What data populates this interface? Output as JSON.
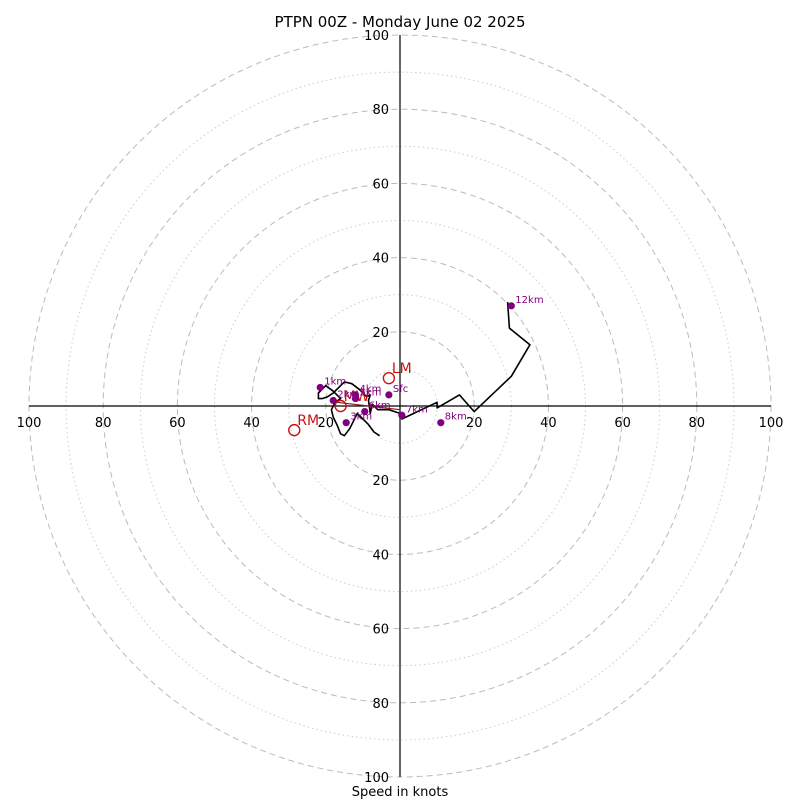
{
  "chart_data": {
    "type": "line",
    "title": "PTPN 00Z - Monday June 02 2025",
    "xlabel": "Speed in knots",
    "ylabel": "",
    "range": 100,
    "major_rings": [
      20,
      40,
      60,
      80,
      100
    ],
    "minor_rings": [
      10,
      30,
      50,
      70,
      90
    ],
    "x_ticks": [
      {
        "value": -100,
        "label": "100"
      },
      {
        "value": -80,
        "label": "80"
      },
      {
        "value": -60,
        "label": "60"
      },
      {
        "value": -40,
        "label": "40"
      },
      {
        "value": -20,
        "label": "20"
      },
      {
        "value": 20,
        "label": "20"
      },
      {
        "value": 40,
        "label": "40"
      },
      {
        "value": 60,
        "label": "60"
      },
      {
        "value": 80,
        "label": "80"
      },
      {
        "value": 100,
        "label": "100"
      }
    ],
    "y_ticks": [
      {
        "value": 100,
        "label": "100"
      },
      {
        "value": 80,
        "label": "80"
      },
      {
        "value": 60,
        "label": "60"
      },
      {
        "value": 40,
        "label": "40"
      },
      {
        "value": 20,
        "label": "20"
      },
      {
        "value": -20,
        "label": "20"
      },
      {
        "value": -40,
        "label": "40"
      },
      {
        "value": -60,
        "label": "60"
      },
      {
        "value": -80,
        "label": "80"
      },
      {
        "value": -100,
        "label": "100"
      }
    ],
    "hodograph": {
      "color": "#000000",
      "u": [
        -5.5,
        -7,
        -8.5,
        -10.5,
        -11.5,
        -12.5,
        -13.5,
        -15,
        -16,
        -17,
        -18,
        -18.5,
        -17.5,
        -16,
        -18,
        -20,
        -22,
        -22,
        -21,
        -19.5,
        -18,
        -16.5,
        -15,
        -13,
        -11,
        -9,
        -8,
        -8.5,
        -8,
        -7.5,
        -6,
        -3,
        0,
        0.5,
        10,
        10,
        16,
        20,
        30,
        35,
        29.5,
        29
      ],
      "v": [
        -8,
        -7,
        -5,
        -3,
        -2,
        -4,
        -6,
        -8,
        -7.5,
        -5,
        -3,
        -1,
        1,
        2,
        4,
        5.5,
        3.5,
        2,
        2,
        2.5,
        3.5,
        5,
        6.5,
        6,
        4.5,
        2.5,
        3,
        1.5,
        -2,
        0.5,
        -1,
        -1,
        -2,
        -3.5,
        1,
        -0.5,
        3,
        -1.5,
        8,
        16.5,
        21,
        28
      ]
    },
    "points": [
      {
        "label": "Sfc",
        "u": -3,
        "v": 3,
        "color": "#800080"
      },
      {
        "label": "1km",
        "u": -21.5,
        "v": 5,
        "color": "#800080"
      },
      {
        "label": "2km",
        "u": -18,
        "v": 1.5,
        "color": "#800080"
      },
      {
        "label": "3km",
        "u": -14.5,
        "v": -4.5,
        "color": "#800080"
      },
      {
        "label": "4km",
        "u": -12,
        "v": 3,
        "color": "#800080"
      },
      {
        "label": "5km",
        "u": -12,
        "v": 2,
        "color": "#800080"
      },
      {
        "label": "6km",
        "u": -9.5,
        "v": -1.5,
        "color": "#800080"
      },
      {
        "label": "7km",
        "u": 0.5,
        "v": -2.5,
        "color": "#800080"
      },
      {
        "label": "8km",
        "u": 11,
        "v": -4.5,
        "color": "#800080"
      },
      {
        "label": "12km",
        "u": 30,
        "v": 27,
        "color": "#800080"
      }
    ],
    "storm_motion": [
      {
        "label": "LM",
        "u": -3,
        "v": 7.5,
        "color": "#cc1111"
      },
      {
        "label": "RM",
        "u": -28.5,
        "v": -6.5,
        "color": "#cc1111"
      },
      {
        "label": "MW",
        "u": -16,
        "v": 0,
        "color": "#cc1111"
      }
    ],
    "motion_line": {
      "u": [
        -17,
        0
      ],
      "v": [
        1,
        -1
      ],
      "color": "#8b1a1a"
    },
    "grid": true
  }
}
